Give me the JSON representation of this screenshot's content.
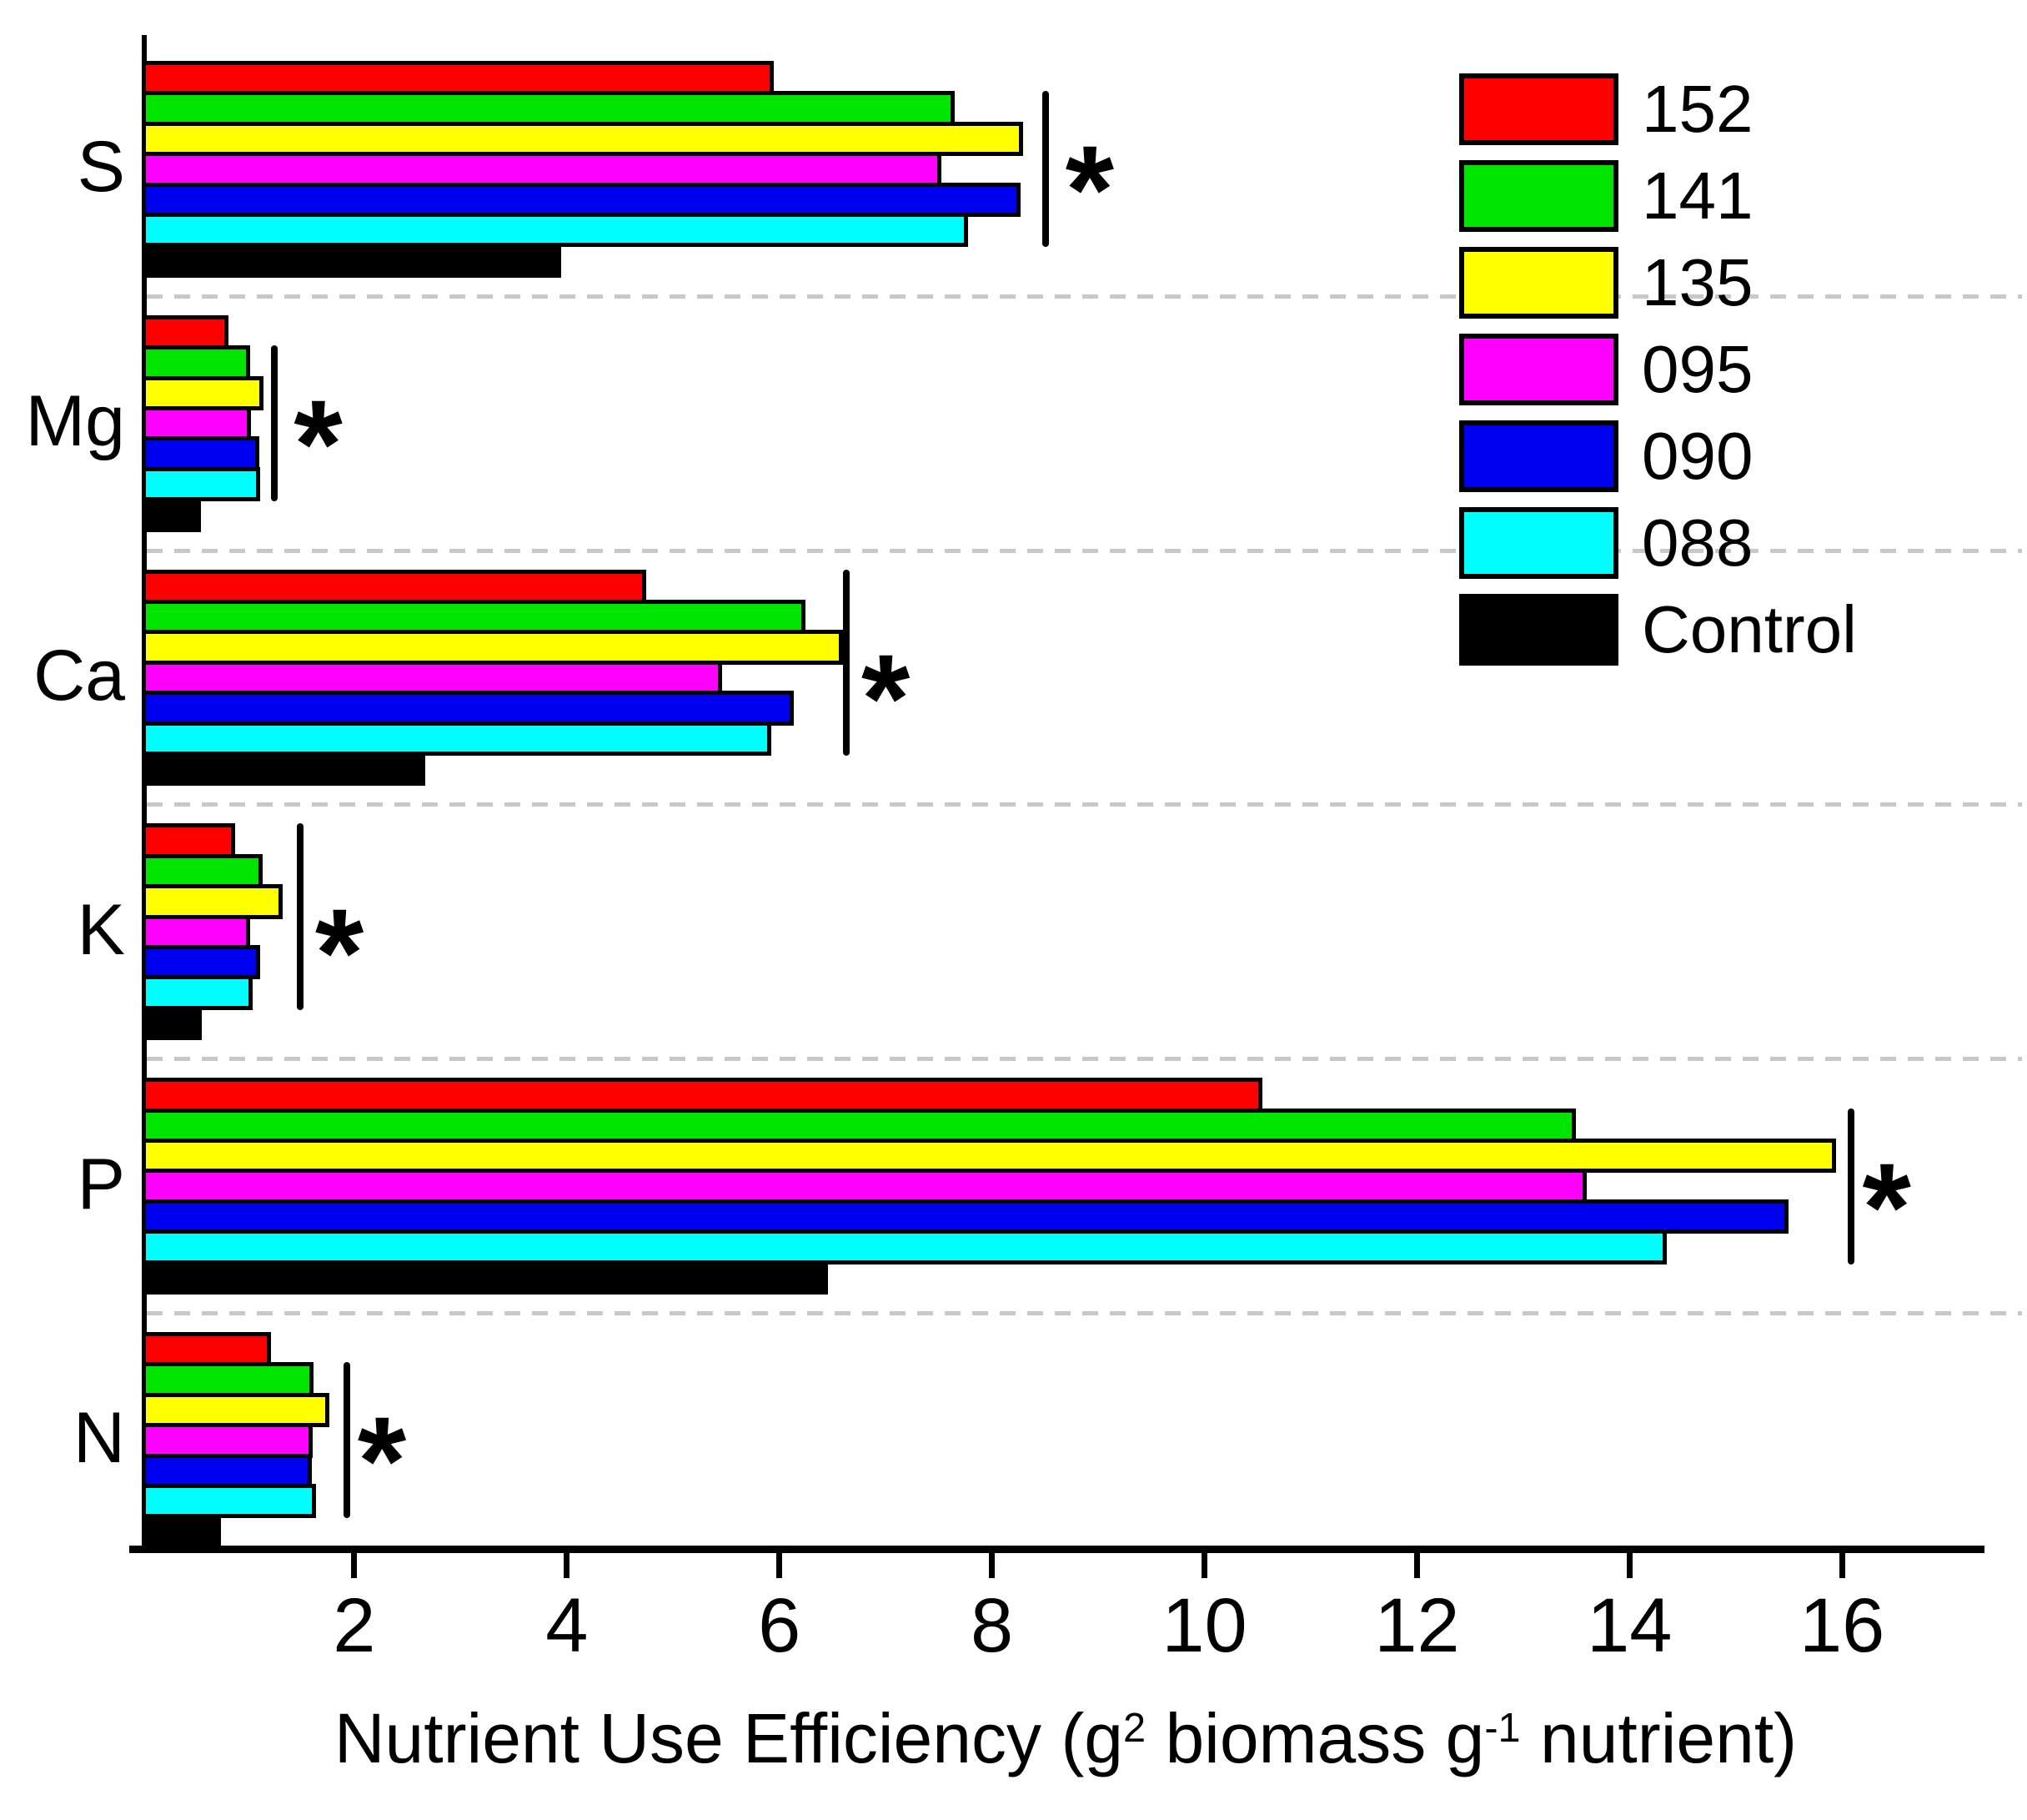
{
  "chart_data": {
    "type": "bar",
    "orientation": "horizontal",
    "title": "",
    "xlabel_plain": "Nutrient Use Efficiency (g2 biomass g-1 nutrient)",
    "xlabel_parts": [
      {
        "text": "Nutrient Use Efficiency (g"
      },
      {
        "sup": "2"
      },
      {
        "text": " biomass g"
      },
      {
        "sup": "-1"
      },
      {
        "text": " nutrient)"
      }
    ],
    "ylabel": "",
    "x_ticks": [
      2,
      4,
      6,
      8,
      10,
      12,
      14,
      16
    ],
    "xlim": [
      0,
      17.3
    ],
    "grid": "dashed light-gray horizontal separators between nutrient groups",
    "legend_position": "upper-right",
    "categories": [
      "S",
      "Mg",
      "Ca",
      "K",
      "P",
      "N"
    ],
    "series": [
      {
        "name": "152",
        "color": "#ff0000",
        "values": [
          5.9,
          0.77,
          4.7,
          0.83,
          10.5,
          1.17
        ]
      },
      {
        "name": "141",
        "color": "#00e500",
        "values": [
          7.6,
          0.97,
          6.2,
          1.09,
          13.45,
          1.57
        ]
      },
      {
        "name": "135",
        "color": "#ffff00",
        "values": [
          8.25,
          1.1,
          6.55,
          1.28,
          15.9,
          1.72
        ]
      },
      {
        "name": "095",
        "color": "#ff00ff",
        "values": [
          7.48,
          0.98,
          5.41,
          0.97,
          13.55,
          1.56
        ]
      },
      {
        "name": "090",
        "color": "#0000f0",
        "values": [
          8.22,
          1.06,
          6.09,
          1.07,
          15.45,
          1.55
        ]
      },
      {
        "name": "088",
        "color": "#00ffff",
        "values": [
          7.73,
          1.07,
          5.88,
          1.0,
          14.3,
          1.59
        ]
      },
      {
        "name": "Control",
        "color": "#000000",
        "values": [
          3.9,
          0.51,
          2.62,
          0.52,
          6.41,
          0.7
        ]
      }
    ],
    "annotations": [
      {
        "category": "S",
        "marker": "*",
        "line_x": 8.47,
        "star_x": 8.92,
        "bar_start": 1,
        "bar_end": 5
      },
      {
        "category": "Mg",
        "marker": "*",
        "line_x": 1.22,
        "star_x": 1.66,
        "bar_start": 1,
        "bar_end": 5
      },
      {
        "category": "Ca",
        "marker": "*",
        "line_x": 6.6,
        "star_x": 7.0,
        "bar_start": 0,
        "bar_end": 5
      },
      {
        "category": "K",
        "marker": "*",
        "line_x": 1.46,
        "star_x": 1.86,
        "bar_start": 0,
        "bar_end": 5
      },
      {
        "category": "P",
        "marker": "*",
        "line_x": 16.05,
        "star_x": 16.42,
        "bar_start": 1,
        "bar_end": 5
      },
      {
        "category": "N",
        "marker": "*",
        "line_x": 1.9,
        "star_x": 2.26,
        "bar_start": 1,
        "bar_end": 5
      }
    ]
  },
  "colors": {
    "axis": "#000000",
    "gridline": "#c8c8c8",
    "background": "#ffffff",
    "text": "#000000"
  }
}
